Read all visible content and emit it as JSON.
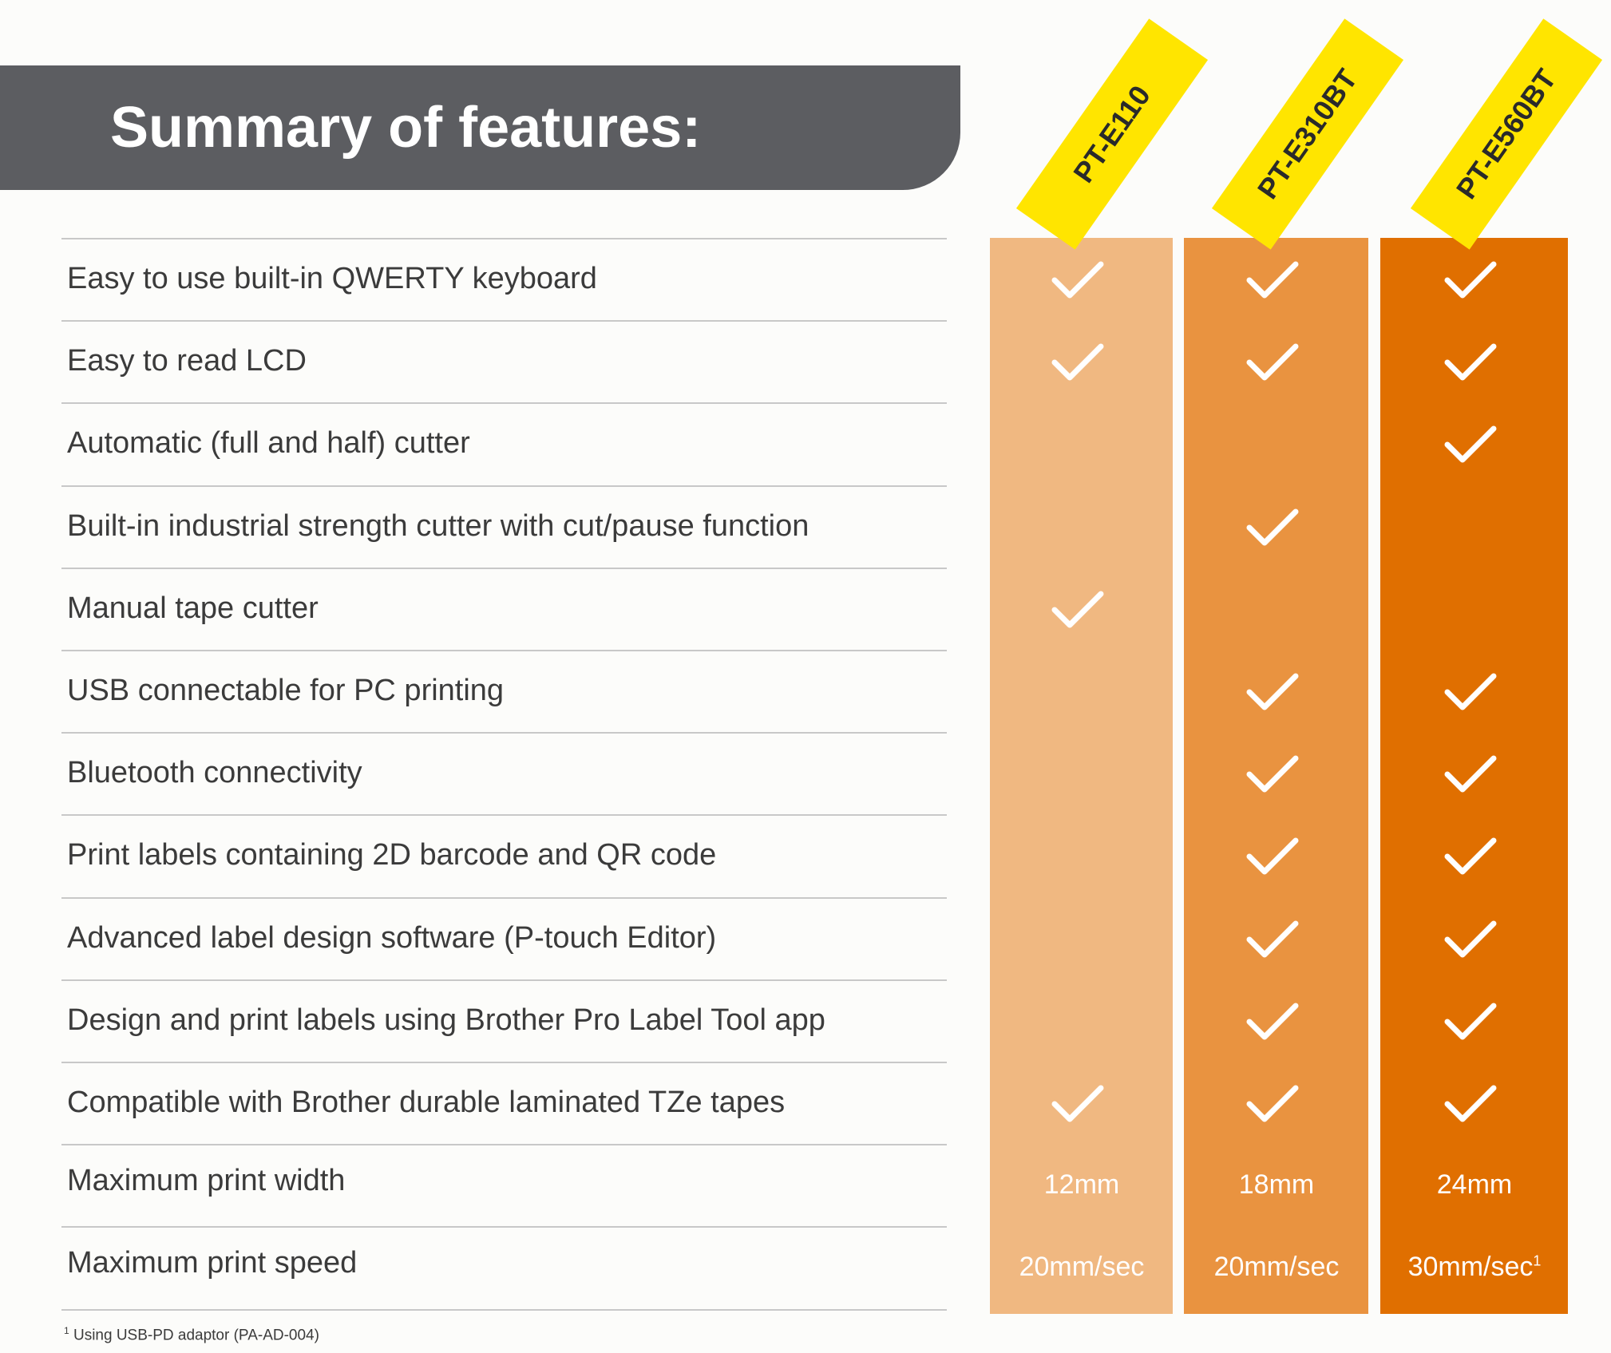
{
  "header": {
    "title": "Summary of features:"
  },
  "models": [
    {
      "name": "PT-E110",
      "color": "#f0b881"
    },
    {
      "name": "PT-E310BT",
      "color": "#e99340"
    },
    {
      "name": "PT-E560BT",
      "color": "#e06f00"
    }
  ],
  "features": [
    {
      "label": "Easy to use built-in QWERTY keyboard",
      "checks": [
        true,
        true,
        true
      ]
    },
    {
      "label": "Easy to read LCD",
      "checks": [
        true,
        true,
        true
      ]
    },
    {
      "label": "Automatic (full and half) cutter",
      "checks": [
        false,
        false,
        true
      ]
    },
    {
      "label": "Built-in industrial strength cutter with cut/pause function",
      "checks": [
        false,
        true,
        false
      ]
    },
    {
      "label": "Manual tape cutter",
      "checks": [
        true,
        false,
        false
      ]
    },
    {
      "label": "USB connectable for PC printing",
      "checks": [
        false,
        true,
        true
      ]
    },
    {
      "label": "Bluetooth connectivity",
      "checks": [
        false,
        true,
        true
      ]
    },
    {
      "label": "Print labels containing 2D barcode and QR code",
      "checks": [
        false,
        true,
        true
      ]
    },
    {
      "label": "Advanced label design software (P-touch Editor)",
      "checks": [
        false,
        true,
        true
      ]
    },
    {
      "label": "Design and print labels using Brother Pro Label Tool app",
      "checks": [
        false,
        true,
        true
      ]
    },
    {
      "label": "Compatible with Brother durable laminated TZe tapes",
      "checks": [
        true,
        true,
        true
      ]
    }
  ],
  "specs": [
    {
      "label": "Maximum print width",
      "values": [
        "12mm",
        "18mm",
        "24mm"
      ],
      "notes": [
        "",
        "",
        ""
      ]
    },
    {
      "label": "Maximum print speed",
      "values": [
        "20mm/sec",
        "20mm/sec",
        "30mm/sec"
      ],
      "notes": [
        "",
        "",
        "1"
      ]
    }
  ],
  "footnote": {
    "mark": "1",
    "text": "Using USB-PD adaptor (PA-AD-004)"
  },
  "colors": {
    "header_bg": "#5c5d61",
    "tag": "#ffe500",
    "check": "#ffffff",
    "divider": "#c8c8c8"
  }
}
